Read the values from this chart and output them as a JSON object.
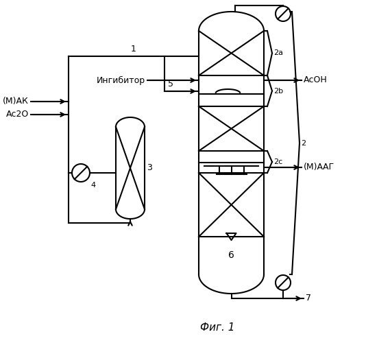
{
  "title": "Фиг. 1",
  "background": "#ffffff",
  "line_color": "#000000",
  "labels": {
    "inhibitor": "Ингибитор",
    "acoh": "АсОН",
    "mak": "(М)АК",
    "ac2o": "Ас2О",
    "maag": "(М)ААГ",
    "fig": "Фиг. 1",
    "n1": "1",
    "n2": "2",
    "n2a": "2а",
    "n2b": "2b",
    "n2c": "2с",
    "n3": "3",
    "n4": "4",
    "n5": "5",
    "n6": "6",
    "n7": "7"
  }
}
